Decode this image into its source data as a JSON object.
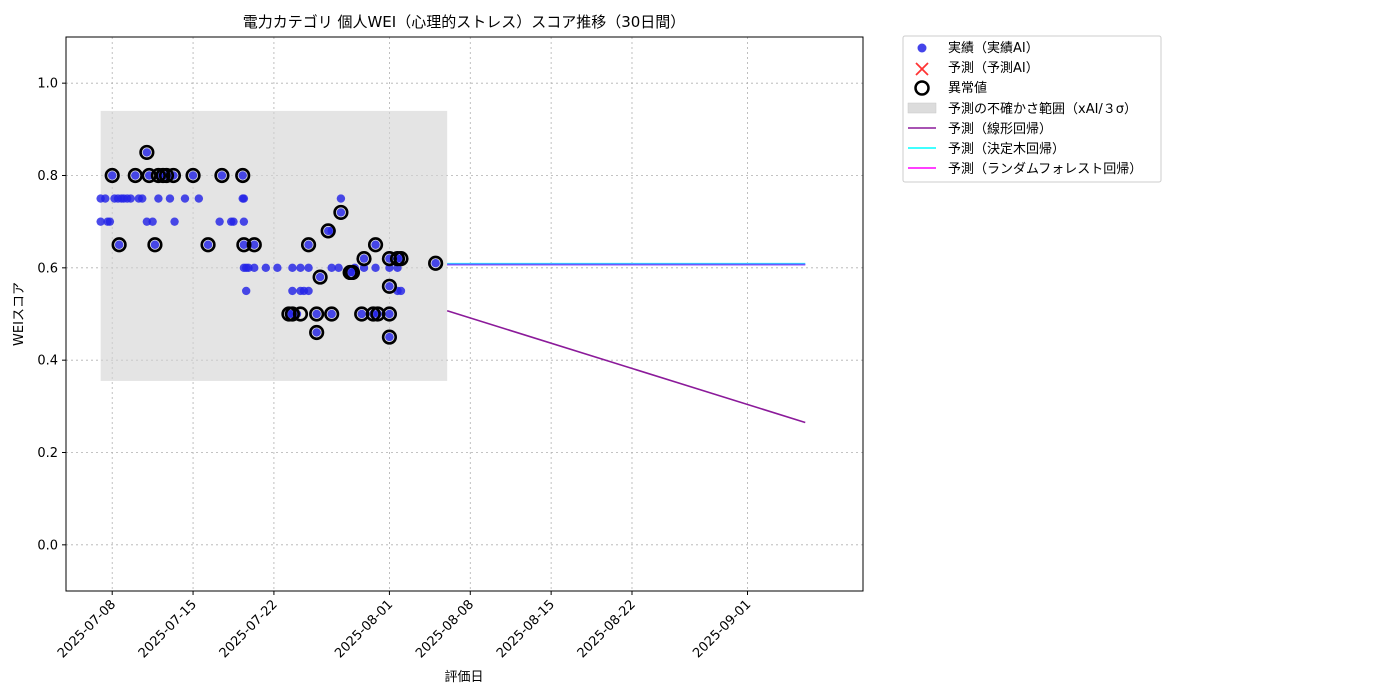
{
  "chart_data": {
    "type": "scatter",
    "title": "電力カテゴリ 個人WEI（心理的ストレス）スコア推移（30日間）",
    "xlabel": "評価日",
    "ylabel": "WEIスコア",
    "xlim": [
      "2025-07-04",
      "2025-09-11"
    ],
    "ylim": [
      -0.1,
      1.1
    ],
    "yticks": [
      0.0,
      0.2,
      0.4,
      0.6,
      0.8,
      1.0
    ],
    "ytick_labels": [
      "0.0",
      "0.2",
      "0.4",
      "0.6",
      "0.8",
      "1.0"
    ],
    "xticks": [
      "2025-07-08",
      "2025-07-15",
      "2025-07-22",
      "2025-08-01",
      "2025-08-08",
      "2025-08-15",
      "2025-08-22",
      "2025-09-01"
    ],
    "grid": true,
    "legend_position": "outside upper-right",
    "legend": {
      "actual": "実績（実績AI）",
      "predicted": "予測（予測AI）",
      "anomaly": "異常値",
      "uncertainty": "予測の不確かさ範囲（xAI/３σ）",
      "linear": "予測（線形回帰）",
      "tree": "予測（決定木回帰）",
      "forest": "予測（ランダムフォレスト回帰）"
    },
    "colors": {
      "actual": "#2323e6",
      "actual_edge": "#0000cc",
      "predicted": "#ff0000",
      "anomaly_edge": "#000000",
      "uncertainty": "#d3d3d3",
      "linear": "#8b1a9a",
      "tree": "#00ffff",
      "forest": "#ff00ff",
      "overlap": "#6a5bff"
    },
    "uncertainty_band": {
      "x": [
        "2025-07-07",
        "2025-08-06"
      ],
      "y": [
        0.355,
        0.94
      ]
    },
    "actual_points": [
      [
        "2025-07-07",
        0.75
      ],
      [
        "2025-07-07",
        0.7
      ],
      [
        "2025-07-07.4",
        0.75
      ],
      [
        "2025-07-07.6",
        0.7
      ],
      [
        "2025-07-07.8",
        0.7
      ],
      [
        "2025-07-08",
        0.8
      ],
      [
        "2025-07-08.2",
        0.75
      ],
      [
        "2025-07-08.5",
        0.75
      ],
      [
        "2025-07-08.6",
        0.65
      ],
      [
        "2025-07-08.8",
        0.75
      ],
      [
        "2025-07-09",
        0.75
      ],
      [
        "2025-07-09.3",
        0.75
      ],
      [
        "2025-07-09.6",
        0.75
      ],
      [
        "2025-07-10",
        0.8
      ],
      [
        "2025-07-10.3",
        0.75
      ],
      [
        "2025-07-10.6",
        0.75
      ],
      [
        "2025-07-11",
        0.85
      ],
      [
        "2025-07-11",
        0.7
      ],
      [
        "2025-07-11.2",
        0.8
      ],
      [
        "2025-07-11.5",
        0.7
      ],
      [
        "2025-07-11.7",
        0.65
      ],
      [
        "2025-07-12",
        0.8
      ],
      [
        "2025-07-12",
        0.75
      ],
      [
        "2025-07-12.4",
        0.8
      ],
      [
        "2025-07-12.7",
        0.8
      ],
      [
        "2025-07-13",
        0.75
      ],
      [
        "2025-07-13.3",
        0.8
      ],
      [
        "2025-07-13.4",
        0.7
      ],
      [
        "2025-07-14.3",
        0.75
      ],
      [
        "2025-07-15",
        0.8
      ],
      [
        "2025-07-15.5",
        0.75
      ],
      [
        "2025-07-16.3",
        0.65
      ],
      [
        "2025-07-17.3",
        0.7
      ],
      [
        "2025-07-17.5",
        0.8
      ],
      [
        "2025-07-18.3",
        0.7
      ],
      [
        "2025-07-18.5",
        0.7
      ],
      [
        "2025-07-19.3",
        0.8
      ],
      [
        "2025-07-19.3",
        0.75
      ],
      [
        "2025-07-19.4",
        0.75
      ],
      [
        "2025-07-19.4",
        0.7
      ],
      [
        "2025-07-19.4",
        0.65
      ],
      [
        "2025-07-19.4",
        0.6
      ],
      [
        "2025-07-19.6",
        0.6
      ],
      [
        "2025-07-19.6",
        0.55
      ],
      [
        "2025-07-19.8",
        0.6
      ],
      [
        "2025-07-20.3",
        0.65
      ],
      [
        "2025-07-20.3",
        0.6
      ],
      [
        "2025-07-21.3",
        0.6
      ],
      [
        "2025-07-22.3",
        0.6
      ],
      [
        "2025-07-23.3",
        0.5
      ],
      [
        "2025-07-23.6",
        0.5
      ],
      [
        "2025-07-23.6",
        0.55
      ],
      [
        "2025-07-23.6",
        0.6
      ],
      [
        "2025-07-24.0",
        0.5
      ],
      [
        "2025-07-24.3",
        0.55
      ],
      [
        "2025-07-24.3",
        0.6
      ],
      [
        "2025-07-24.6",
        0.55
      ],
      [
        "2025-07-25.0",
        0.65
      ],
      [
        "2025-07-25.0",
        0.6
      ],
      [
        "2025-07-25.0",
        0.55
      ],
      [
        "2025-07-25.7",
        0.5
      ],
      [
        "2025-07-25.7",
        0.46
      ],
      [
        "2025-07-26.0",
        0.58
      ],
      [
        "2025-07-26.7",
        0.68
      ],
      [
        "2025-07-27.0",
        0.68
      ],
      [
        "2025-07-27.0",
        0.6
      ],
      [
        "2025-07-27.0",
        0.5
      ],
      [
        "2025-07-27.6",
        0.6
      ],
      [
        "2025-07-27.8",
        0.75
      ],
      [
        "2025-07-27.8",
        0.72
      ],
      [
        "2025-07-28.6",
        0.59
      ],
      [
        "2025-07-28.8",
        0.59
      ],
      [
        "2025-07-29.0",
        0.6
      ],
      [
        "2025-07-29.6",
        0.5
      ],
      [
        "2025-07-29.8",
        0.62
      ],
      [
        "2025-07-29.8",
        0.6
      ],
      [
        "2025-07-30.6",
        0.5
      ],
      [
        "2025-07-30.8",
        0.65
      ],
      [
        "2025-07-30.8",
        0.6
      ],
      [
        "2025-07-31.0",
        0.5
      ],
      [
        "2025-08-01",
        0.62
      ],
      [
        "2025-08-01",
        0.6
      ],
      [
        "2025-08-01",
        0.56
      ],
      [
        "2025-08-01",
        0.5
      ],
      [
        "2025-08-01",
        0.45
      ],
      [
        "2025-08-01.7",
        0.62
      ],
      [
        "2025-08-01.7",
        0.6
      ],
      [
        "2025-08-01.7",
        0.55
      ],
      [
        "2025-08-02.0",
        0.62
      ],
      [
        "2025-08-02.0",
        0.55
      ],
      [
        "2025-08-05",
        0.61
      ]
    ],
    "anomaly_points": [
      [
        "2025-07-08",
        0.8
      ],
      [
        "2025-07-08.6",
        0.65
      ],
      [
        "2025-07-10",
        0.8
      ],
      [
        "2025-07-11",
        0.85
      ],
      [
        "2025-07-11.2",
        0.8
      ],
      [
        "2025-07-11.7",
        0.65
      ],
      [
        "2025-07-12",
        0.8
      ],
      [
        "2025-07-12.4",
        0.8
      ],
      [
        "2025-07-12.7",
        0.8
      ],
      [
        "2025-07-13.3",
        0.8
      ],
      [
        "2025-07-15",
        0.8
      ],
      [
        "2025-07-16.3",
        0.65
      ],
      [
        "2025-07-17.5",
        0.8
      ],
      [
        "2025-07-19.3",
        0.8
      ],
      [
        "2025-07-19.4",
        0.65
      ],
      [
        "2025-07-20.3",
        0.65
      ],
      [
        "2025-07-23.3",
        0.5
      ],
      [
        "2025-07-23.6",
        0.5
      ],
      [
        "2025-07-24.3",
        0.5
      ],
      [
        "2025-07-25.0",
        0.65
      ],
      [
        "2025-07-25.7",
        0.5
      ],
      [
        "2025-07-25.7",
        0.46
      ],
      [
        "2025-07-26.0",
        0.58
      ],
      [
        "2025-07-26.7",
        0.68
      ],
      [
        "2025-07-27.0",
        0.5
      ],
      [
        "2025-07-27.8",
        0.72
      ],
      [
        "2025-07-28.6",
        0.59
      ],
      [
        "2025-07-28.8",
        0.59
      ],
      [
        "2025-07-29.6",
        0.5
      ],
      [
        "2025-07-29.8",
        0.62
      ],
      [
        "2025-07-30.6",
        0.5
      ],
      [
        "2025-07-30.8",
        0.65
      ],
      [
        "2025-07-31.0",
        0.5
      ],
      [
        "2025-08-01",
        0.62
      ],
      [
        "2025-08-01",
        0.56
      ],
      [
        "2025-08-01",
        0.5
      ],
      [
        "2025-08-01",
        0.45
      ],
      [
        "2025-08-01.7",
        0.62
      ],
      [
        "2025-08-02.0",
        0.62
      ],
      [
        "2025-08-05",
        0.61
      ]
    ],
    "linear_regression": {
      "x": [
        "2025-08-06",
        "2025-09-06"
      ],
      "y": [
        0.507,
        0.265
      ]
    },
    "tree_regression": {
      "x": [
        "2025-08-06",
        "2025-09-06"
      ],
      "y": [
        0.609,
        0.609
      ]
    },
    "forest_regression": {
      "x": [
        "2025-08-06",
        "2025-09-06"
      ],
      "y": [
        0.607,
        0.607
      ]
    }
  }
}
